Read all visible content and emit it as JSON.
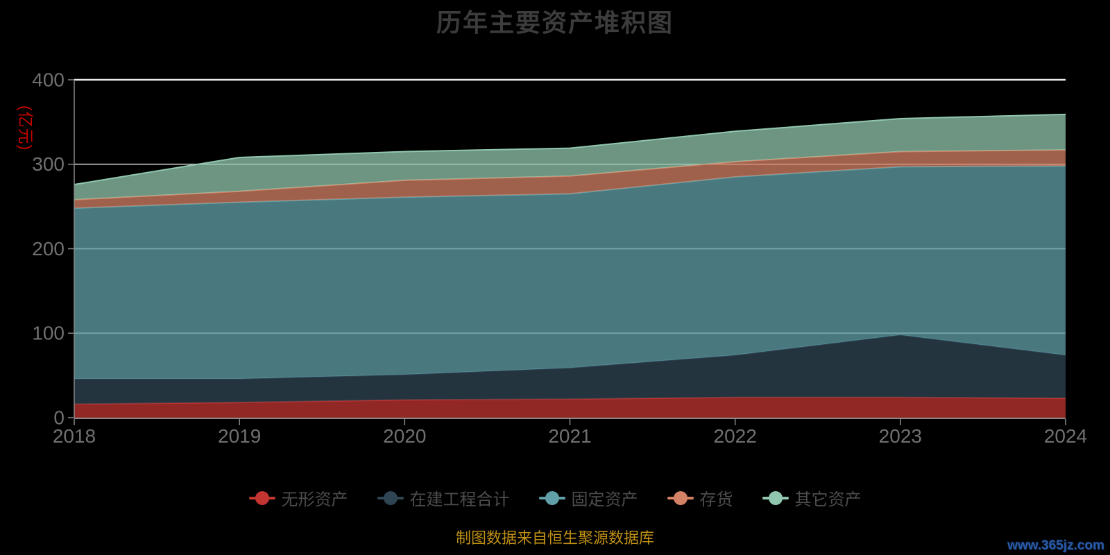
{
  "title": "历年主要资产堆积图",
  "y_axis": {
    "name": "(亿元)",
    "name_color": "#c80000",
    "ticks": [
      0,
      100,
      200,
      300,
      400
    ],
    "label_color": "#707070"
  },
  "x_axis": {
    "categories": [
      "2018",
      "2019",
      "2020",
      "2021",
      "2022",
      "2023",
      "2024"
    ],
    "label_color": "#707070"
  },
  "chart_data": {
    "type": "area",
    "stacked": true,
    "title": "历年主要资产堆积图",
    "unit": "亿元",
    "categories": [
      "2018",
      "2019",
      "2020",
      "2021",
      "2022",
      "2023",
      "2024"
    ],
    "series": [
      {
        "name": "无形资产",
        "color": "#c23531",
        "values": [
          16,
          18,
          21,
          22,
          24,
          24,
          23
        ]
      },
      {
        "name": "在建工程合计",
        "color": "#2f4554",
        "values": [
          30,
          28,
          30,
          37,
          50,
          74,
          51
        ]
      },
      {
        "name": "固定资产",
        "color": "#61a0a8",
        "values": [
          202,
          209,
          210,
          206,
          211,
          199,
          224
        ]
      },
      {
        "name": "存货",
        "color": "#d48265",
        "values": [
          10,
          13,
          20,
          21,
          18,
          18,
          19
        ]
      },
      {
        "name": "其它资产",
        "color": "#91c7ae",
        "values": [
          18,
          40,
          34,
          33,
          36,
          39,
          42
        ]
      }
    ],
    "ylim": [
      0,
      400
    ],
    "grid": true,
    "area_opacity": 0.75,
    "background": "#000000",
    "legend_position": "bottom"
  },
  "legend": {
    "items": [
      {
        "label": "无形资产",
        "color": "#c23531"
      },
      {
        "label": "在建工程合计",
        "color": "#2f4554"
      },
      {
        "label": "固定资产",
        "color": "#61a0a8"
      },
      {
        "label": "存货",
        "color": "#d48265"
      },
      {
        "label": "其它资产",
        "color": "#91c7ae"
      }
    ]
  },
  "footer": {
    "source_note": "制图数据来自恒生聚源数据库",
    "watermark": "www.365jz.com"
  }
}
